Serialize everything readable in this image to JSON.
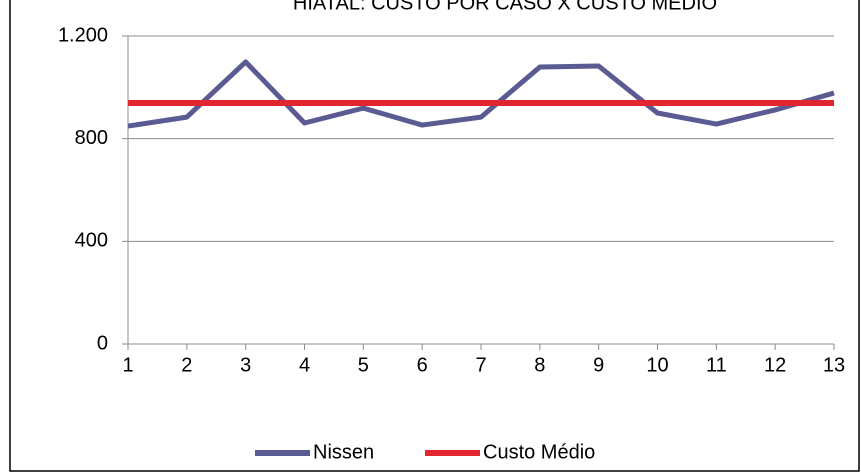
{
  "chart_data": {
    "type": "line",
    "title": "HIATAL: CUSTO POR CASO X CUSTO MÉDIO",
    "categories": [
      "1",
      "2",
      "3",
      "4",
      "5",
      "6",
      "7",
      "8",
      "9",
      "10",
      "11",
      "12",
      "13"
    ],
    "series": [
      {
        "name": "Nissen",
        "color": "#5b5b94",
        "values": [
          849,
          884,
          1099,
          861,
          919,
          853,
          884,
          1079,
          1083,
          900,
          857,
          912,
          978
        ]
      },
      {
        "name": "Custo Médio",
        "color": "#e0262e",
        "values": [
          939,
          939,
          939,
          939,
          939,
          939,
          939,
          939,
          939,
          939,
          939,
          939,
          939
        ]
      }
    ],
    "ylim": [
      0,
      1200
    ],
    "yticks": [
      0,
      400,
      800,
      {
        "value": 1200,
        "label": "1.200"
      }
    ],
    "grid": true,
    "legend": "bottom"
  }
}
